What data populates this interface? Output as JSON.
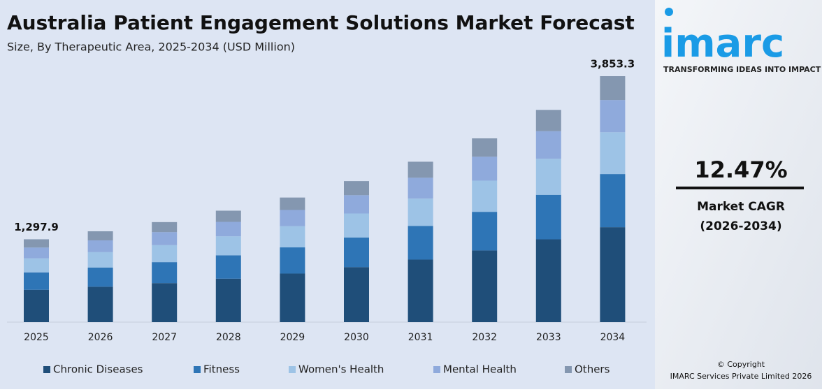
{
  "chart_data": {
    "type": "stacked-bar",
    "title": "Australia Patient Engagement Solutions Market Forecast",
    "subtitle": "Size, By Therapeutic Area, 2025-2034 (USD Million)",
    "categories": [
      "2025",
      "2026",
      "2027",
      "2028",
      "2029",
      "2030",
      "2031",
      "2032",
      "2033",
      "2034"
    ],
    "series": [
      {
        "name": "Chronic Diseases",
        "color": "#1f4e79",
        "values": [
          506.2,
          555,
          611,
          681,
          761,
          862,
          980,
          1123,
          1297,
          1487.4
        ]
      },
      {
        "name": "Fitness",
        "color": "#2e75b6",
        "values": [
          272.6,
          299,
          329,
          366,
          410,
          464,
          528,
          605,
          698,
          832.3
        ]
      },
      {
        "name": "Women's Health",
        "color": "#9dc3e6",
        "values": [
          220.6,
          242,
          266,
          297,
          332,
          376,
          427,
          489,
          565,
          655.1
        ]
      },
      {
        "name": "Mental Health",
        "color": "#8faadc",
        "values": [
          168.7,
          185,
          204,
          227,
          254,
          287,
          327,
          374,
          432,
          504.8
        ]
      },
      {
        "name": "Others",
        "color": "#8497b0",
        "values": [
          129.8,
          142,
          157,
          175,
          195,
          221,
          251,
          288,
          333,
          373.7
        ]
      }
    ],
    "totals": [
      1297.9,
      null,
      null,
      null,
      null,
      null,
      null,
      null,
      null,
      3853.3
    ],
    "total_labels": [
      "1,297.9",
      null,
      null,
      null,
      null,
      null,
      null,
      null,
      null,
      "3,853.3"
    ],
    "legend": "bottom"
  },
  "sidebar": {
    "logo": "imarc",
    "tagline": "TRANSFORMING IDEAS INTO IMPACT",
    "cagr": "12.47%",
    "cagr_label": "Market CAGR",
    "cagr_period": "(2026-2034)",
    "copyright": "© Copyright",
    "company": "IMARC Services Private Limited 2026"
  }
}
